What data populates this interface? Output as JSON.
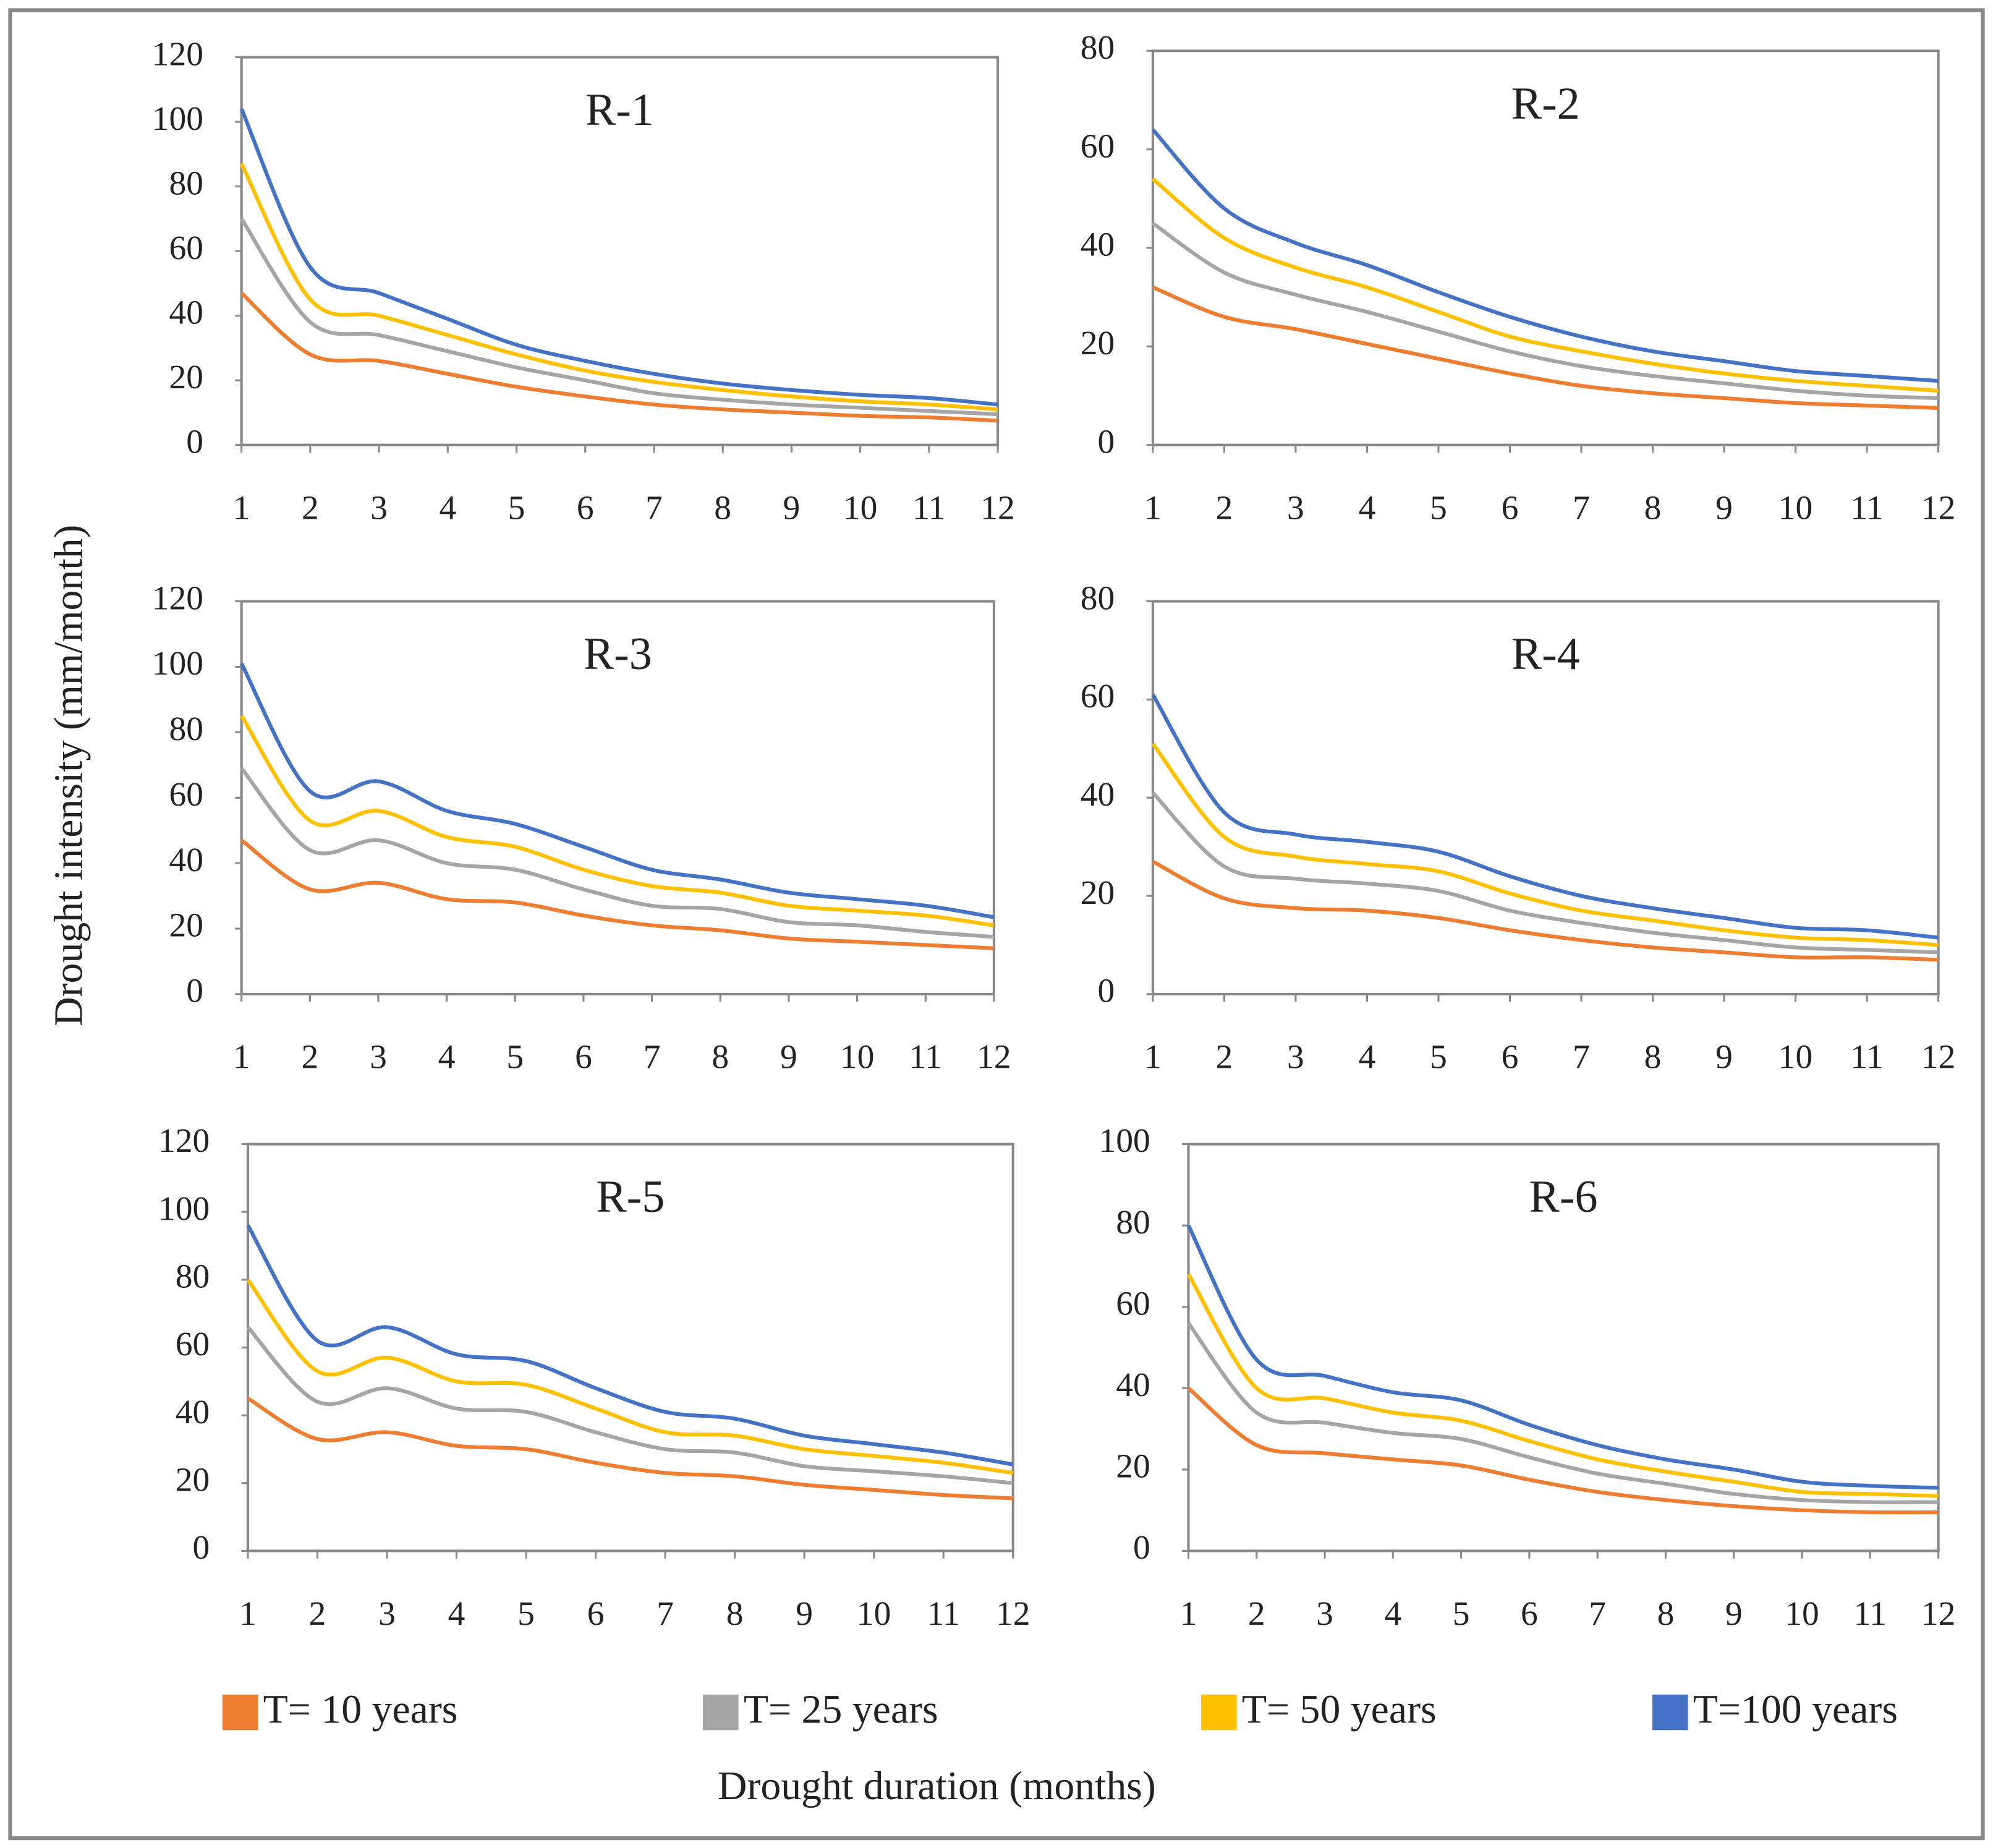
{
  "chart_data": [
    {
      "type": "line",
      "title": "R-1",
      "x": [
        1,
        2,
        3,
        4,
        5,
        6,
        7,
        8,
        9,
        10,
        11,
        12
      ],
      "xlim": [
        1,
        12
      ],
      "xticks": [
        1,
        2,
        3,
        4,
        5,
        6,
        7,
        8,
        9,
        10,
        11,
        12
      ],
      "ylim": [
        0,
        120
      ],
      "yticks": [
        0,
        20,
        40,
        60,
        80,
        100,
        120
      ],
      "series": [
        {
          "values": [
            47,
            28,
            26,
            22,
            18,
            15,
            12.5,
            11,
            10,
            9,
            8.5,
            7.5
          ]
        },
        {
          "values": [
            70,
            38,
            34,
            29,
            24,
            20,
            16,
            14,
            12.5,
            11.5,
            10.5,
            9.5
          ]
        },
        {
          "values": [
            87,
            45,
            40,
            34,
            28,
            23,
            19.5,
            17,
            15,
            13.5,
            12.5,
            11
          ]
        },
        {
          "values": [
            104,
            55,
            47,
            39,
            31,
            26,
            22,
            19,
            17,
            15.5,
            14.5,
            12.5
          ]
        }
      ]
    },
    {
      "type": "line",
      "title": "R-2",
      "x": [
        1,
        2,
        3,
        4,
        5,
        6,
        7,
        8,
        9,
        10,
        11,
        12
      ],
      "xlim": [
        1,
        12
      ],
      "xticks": [
        1,
        2,
        3,
        4,
        5,
        6,
        7,
        8,
        9,
        10,
        11,
        12
      ],
      "ylim": [
        0,
        80
      ],
      "yticks": [
        0,
        20,
        40,
        60,
        80
      ],
      "series": [
        {
          "values": [
            32,
            26,
            23.5,
            20.5,
            17.5,
            14.5,
            12,
            10.5,
            9.5,
            8.5,
            8,
            7.5
          ]
        },
        {
          "values": [
            45,
            35,
            30.5,
            27,
            23,
            19,
            16,
            14,
            12.5,
            11,
            10,
            9.5
          ]
        },
        {
          "values": [
            54,
            42,
            36,
            32,
            27,
            22,
            19,
            16.5,
            14.5,
            13,
            12,
            11
          ]
        },
        {
          "values": [
            64,
            48,
            41,
            36.5,
            31,
            26,
            22,
            19,
            17,
            15,
            14,
            13
          ]
        }
      ]
    },
    {
      "type": "line",
      "title": "R-3",
      "x": [
        1,
        2,
        3,
        4,
        5,
        6,
        7,
        8,
        9,
        10,
        11,
        12
      ],
      "xlim": [
        1,
        12
      ],
      "xticks": [
        1,
        2,
        3,
        4,
        5,
        6,
        7,
        8,
        9,
        10,
        11,
        12
      ],
      "ylim": [
        0,
        120
      ],
      "yticks": [
        0,
        20,
        40,
        60,
        80,
        100,
        120
      ],
      "series": [
        {
          "values": [
            47,
            32,
            34,
            29,
            28,
            24,
            21,
            19.5,
            17,
            16,
            15,
            14
          ]
        },
        {
          "values": [
            69,
            44,
            47,
            40,
            38,
            32,
            27,
            26,
            22,
            21,
            19,
            17.5
          ]
        },
        {
          "values": [
            85,
            53,
            56,
            48,
            45,
            38,
            33,
            31,
            27,
            25.5,
            24,
            21
          ]
        },
        {
          "values": [
            101,
            62,
            65,
            56,
            52,
            45,
            38,
            35,
            31,
            29,
            27,
            23.5
          ]
        }
      ]
    },
    {
      "type": "line",
      "title": "R-4",
      "x": [
        1,
        2,
        3,
        4,
        5,
        6,
        7,
        8,
        9,
        10,
        11,
        12
      ],
      "xlim": [
        1,
        12
      ],
      "xticks": [
        1,
        2,
        3,
        4,
        5,
        6,
        7,
        8,
        9,
        10,
        11,
        12
      ],
      "ylim": [
        0,
        80
      ],
      "yticks": [
        0,
        20,
        40,
        60,
        80
      ],
      "series": [
        {
          "values": [
            27,
            19.5,
            17.5,
            17,
            15.5,
            13,
            11,
            9.5,
            8.5,
            7.5,
            7.5,
            7
          ]
        },
        {
          "values": [
            41,
            26,
            23.5,
            22.5,
            21,
            17,
            14.5,
            12.5,
            11,
            9.5,
            9,
            8.5
          ]
        },
        {
          "values": [
            51,
            32,
            28,
            26.5,
            25,
            20.5,
            17,
            15,
            13,
            11.5,
            11,
            10
          ]
        },
        {
          "values": [
            61,
            37,
            32.5,
            31,
            29,
            24,
            20,
            17.5,
            15.5,
            13.5,
            13,
            11.5
          ]
        }
      ]
    },
    {
      "type": "line",
      "title": "R-5",
      "x": [
        1,
        2,
        3,
        4,
        5,
        6,
        7,
        8,
        9,
        10,
        11,
        12
      ],
      "xlim": [
        1,
        12
      ],
      "xticks": [
        1,
        2,
        3,
        4,
        5,
        6,
        7,
        8,
        9,
        10,
        11,
        12
      ],
      "ylim": [
        0,
        120
      ],
      "yticks": [
        0,
        20,
        40,
        60,
        80,
        100,
        120
      ],
      "series": [
        {
          "values": [
            45,
            33,
            35,
            31,
            30,
            26,
            23,
            22,
            19.5,
            18,
            16.5,
            15.5
          ]
        },
        {
          "values": [
            66,
            44,
            48,
            42,
            41,
            35,
            30,
            29,
            25,
            23.5,
            22,
            20
          ]
        },
        {
          "values": [
            80,
            53,
            57,
            50,
            49,
            42,
            35,
            34,
            30,
            28,
            26,
            23
          ]
        },
        {
          "values": [
            96,
            62,
            66,
            58,
            56,
            48,
            41,
            39,
            34,
            31.5,
            29,
            25.5
          ]
        }
      ]
    },
    {
      "type": "line",
      "title": "R-6",
      "x": [
        1,
        2,
        3,
        4,
        5,
        6,
        7,
        8,
        9,
        10,
        11,
        12
      ],
      "xlim": [
        1,
        12
      ],
      "xticks": [
        1,
        2,
        3,
        4,
        5,
        6,
        7,
        8,
        9,
        10,
        11,
        12
      ],
      "ylim": [
        0,
        100
      ],
      "yticks": [
        0,
        20,
        40,
        60,
        80,
        100
      ],
      "series": [
        {
          "values": [
            40,
            26,
            24,
            22.5,
            21,
            17.5,
            14.5,
            12.5,
            11,
            10,
            9.5,
            9.5
          ]
        },
        {
          "values": [
            56,
            34,
            31.5,
            29,
            27.5,
            23,
            19,
            16.5,
            14,
            12.5,
            12,
            12
          ]
        },
        {
          "values": [
            68,
            40,
            37.5,
            34,
            32,
            27,
            22.5,
            19.5,
            17,
            14.5,
            14,
            13.5
          ]
        },
        {
          "values": [
            80,
            47,
            43,
            39,
            37,
            31,
            26,
            22.5,
            20,
            17,
            16,
            15.5
          ]
        }
      ]
    }
  ],
  "legend": [
    {
      "name": "T= 10 years",
      "color": "#ed7d31"
    },
    {
      "name": "T= 25 years",
      "color": "#a5a5a5"
    },
    {
      "name": "T= 50 years",
      "color": "#ffc000"
    },
    {
      "name": "T=100 years",
      "color": "#4472c4"
    }
  ],
  "xlabel": "Drought duration (months)",
  "ylabel": "Drought intensity (mm/month)"
}
